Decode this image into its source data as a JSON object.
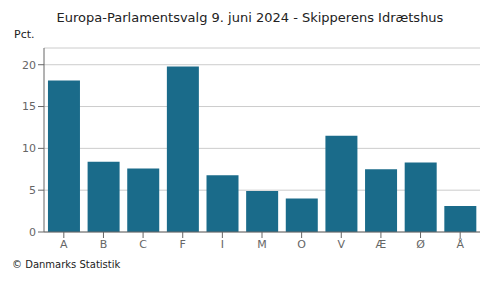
{
  "chart_data": {
    "type": "bar",
    "title": "Europa-Parlamentsvalg 9. juni 2024 - Skipperens Idrætshus",
    "ylabel": "Pct.",
    "annotations": [
      "© Danmarks Statistik"
    ],
    "categories": [
      "A",
      "B",
      "C",
      "F",
      "I",
      "M",
      "O",
      "V",
      "Æ",
      "Ø",
      "Å"
    ],
    "values": [
      18.1,
      8.4,
      7.6,
      19.8,
      6.8,
      4.9,
      4.0,
      11.5,
      7.5,
      8.3,
      3.1
    ],
    "color": "#1a6b8a",
    "ylim": [
      0,
      22
    ],
    "yticks": [
      0,
      5,
      10,
      15,
      20
    ],
    "grid": true
  }
}
